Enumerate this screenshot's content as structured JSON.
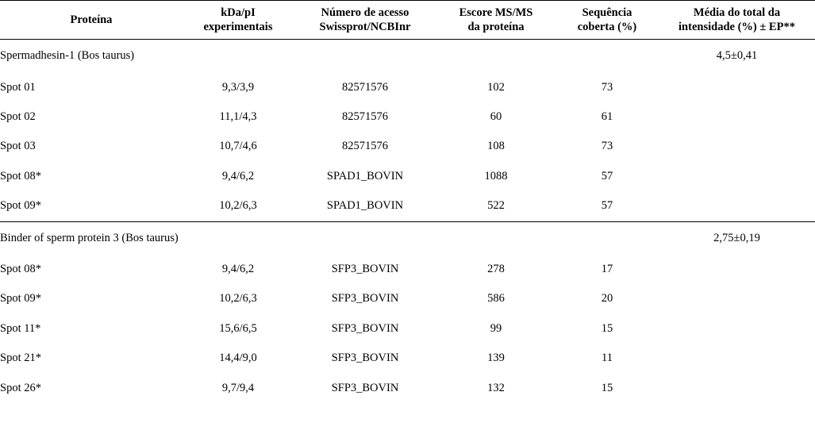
{
  "table": {
    "columns": {
      "protein": "Proteína",
      "kda": "kDa/pI\nexperimentais",
      "access": "Número de acesso\nSwissprot/NCBInr",
      "score": "Escore MS/MS\nda proteína",
      "seq": "Sequência\ncoberta (%)",
      "mean": "Média do total da\nintensidade (%) ± EP**"
    },
    "groups": [
      {
        "protein": "Spermadhesin-1 (Bos taurus)",
        "intensity": "4,5±0,41",
        "rows": [
          {
            "spot": "Spot 01",
            "kda": "9,3/3,9",
            "access": "82571576",
            "score": "102",
            "seq": "73"
          },
          {
            "spot": "Spot 02",
            "kda": "11,1/4,3",
            "access": "82571576",
            "score": "60",
            "seq": "61"
          },
          {
            "spot": "Spot 03",
            "kda": "10,7/4,6",
            "access": "82571576",
            "score": "108",
            "seq": "73"
          },
          {
            "spot": "Spot 08*",
            "kda": "9,4/6,2",
            "access": "SPAD1_BOVIN",
            "score": "1088",
            "seq": "57"
          },
          {
            "spot": "Spot 09*",
            "kda": "10,2/6,3",
            "access": "SPAD1_BOVIN",
            "score": "522",
            "seq": "57"
          }
        ]
      },
      {
        "protein": "Binder of sperm protein 3 (Bos taurus)",
        "intensity": "2,75±0,19",
        "rows": [
          {
            "spot": "Spot 08*",
            "kda": "9,4/6,2",
            "access": "SFP3_BOVIN",
            "score": "278",
            "seq": "17"
          },
          {
            "spot": "Spot 09*",
            "kda": "10,2/6,3",
            "access": "SFP3_BOVIN",
            "score": "586",
            "seq": "20"
          },
          {
            "spot": "Spot 11*",
            "kda": "15,6/6,5",
            "access": "SFP3_BOVIN",
            "score": "99",
            "seq": "15"
          },
          {
            "spot": "Spot 21*",
            "kda": "14,4/9,0",
            "access": "SFP3_BOVIN",
            "score": "139",
            "seq": "11"
          },
          {
            "spot": "Spot 26*",
            "kda": "9,7/9,4",
            "access": "SFP3_BOVIN",
            "score": "132",
            "seq": "15"
          }
        ]
      }
    ]
  }
}
